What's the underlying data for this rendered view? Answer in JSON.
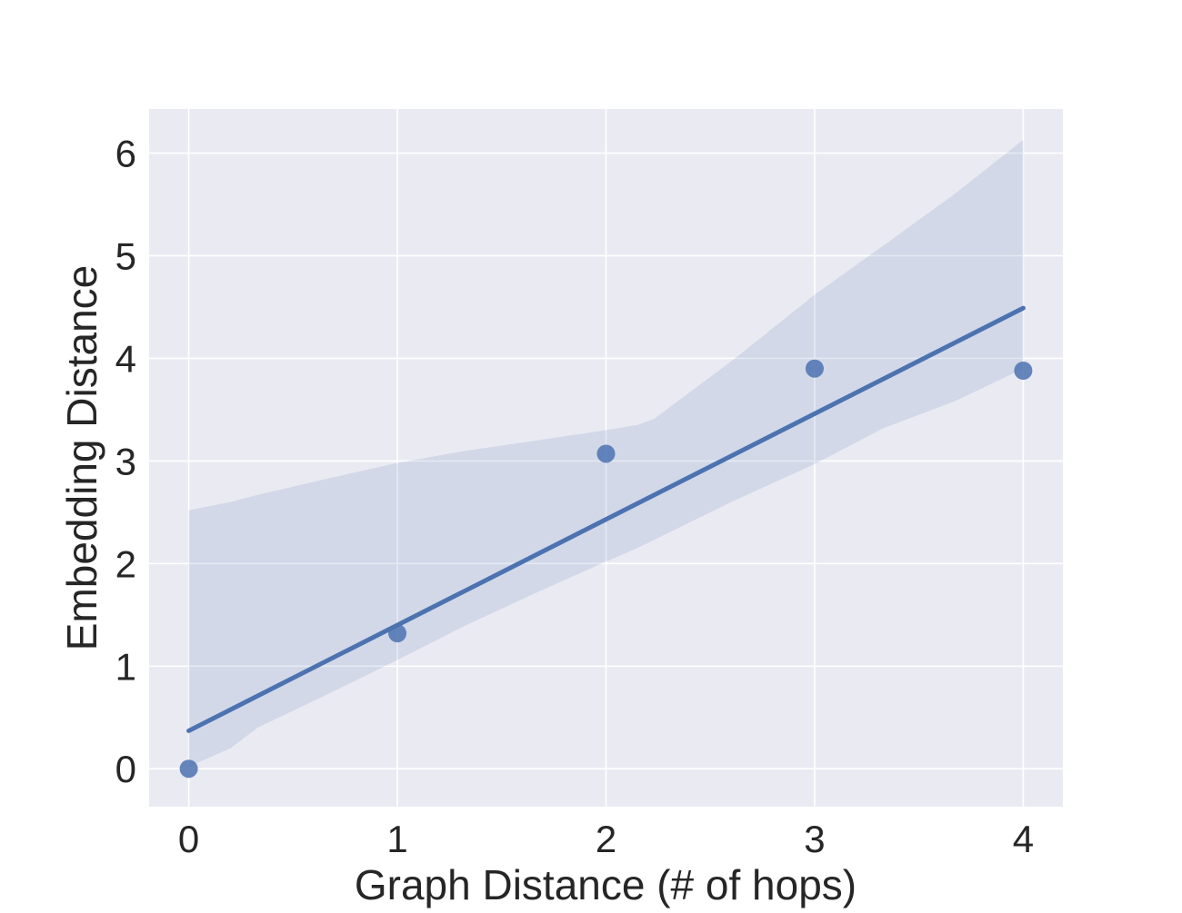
{
  "chart_data": {
    "type": "scatter",
    "title": "",
    "xlabel": "Graph Distance (# of hops)",
    "ylabel": "Embedding Distance",
    "xlim": [
      -0.19,
      4.19
    ],
    "ylim": [
      -0.37,
      6.43
    ],
    "x_ticks": [
      0,
      1,
      2,
      3,
      4
    ],
    "y_ticks": [
      0,
      1,
      2,
      3,
      4,
      5,
      6
    ],
    "grid": true,
    "series": [
      {
        "points": [
          {
            "x": 0,
            "y": 0.0
          },
          {
            "x": 1,
            "y": 1.32
          },
          {
            "x": 2,
            "y": 3.07
          },
          {
            "x": 3,
            "y": 3.9
          },
          {
            "x": 4,
            "y": 3.88
          }
        ]
      }
    ],
    "regression_line": {
      "x": [
        0,
        4
      ],
      "y": [
        0.37,
        4.49
      ]
    },
    "confidence_band": {
      "x": [
        0,
        0.2,
        0.33,
        0.67,
        1.0,
        1.33,
        1.67,
        2.0,
        2.15,
        2.23,
        2.6,
        3.0,
        3.33,
        3.67,
        4.0
      ],
      "upper": [
        2.52,
        2.6,
        2.67,
        2.83,
        2.98,
        3.1,
        3.2,
        3.3,
        3.35,
        3.41,
        3.97,
        4.62,
        5.1,
        5.6,
        6.13
      ],
      "lower": [
        0.02,
        0.2,
        0.4,
        0.73,
        1.06,
        1.4,
        1.72,
        2.02,
        2.15,
        2.23,
        2.6,
        2.97,
        3.32,
        3.58,
        3.9
      ]
    },
    "colors": {
      "background": "#eaeaf2",
      "grid": "#ffffff",
      "series": "#4c72b0",
      "band": "#4c72b0"
    }
  }
}
